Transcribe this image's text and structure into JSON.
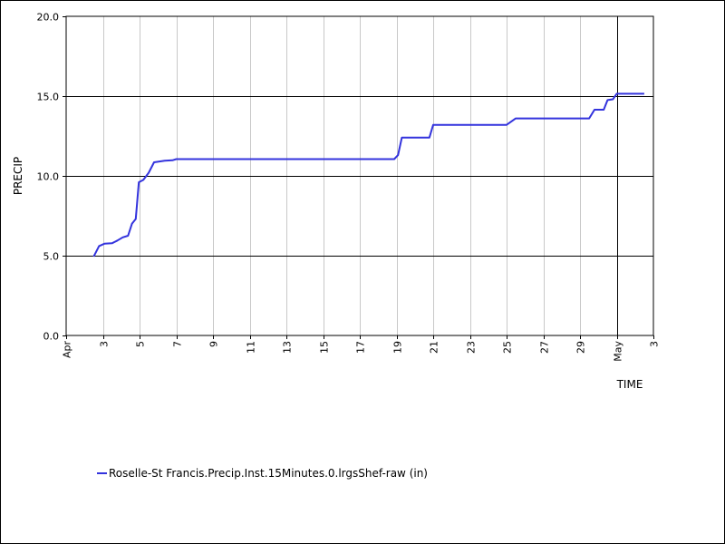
{
  "chart_data": {
    "type": "line",
    "xlabel": "TIME",
    "ylabel": "PRECIP",
    "ylim": [
      0.0,
      20.0
    ],
    "xlim": [
      "2024-04-01",
      "2024-05-03"
    ],
    "y_ticks": [
      0.0,
      5.0,
      10.0,
      15.0,
      20.0
    ],
    "y_tick_labels": [
      "0.0",
      "5.0",
      "10.0",
      "15.0",
      "20.0"
    ],
    "x_ticks": [
      {
        "date": "2024-04-01",
        "label": "Apr"
      },
      {
        "date": "2024-04-03",
        "label": "3"
      },
      {
        "date": "2024-04-05",
        "label": "5"
      },
      {
        "date": "2024-04-07",
        "label": "7"
      },
      {
        "date": "2024-04-09",
        "label": "9"
      },
      {
        "date": "2024-04-11",
        "label": "11"
      },
      {
        "date": "2024-04-13",
        "label": "13"
      },
      {
        "date": "2024-04-15",
        "label": "15"
      },
      {
        "date": "2024-04-17",
        "label": "17"
      },
      {
        "date": "2024-04-19",
        "label": "19"
      },
      {
        "date": "2024-04-21",
        "label": "21"
      },
      {
        "date": "2024-04-23",
        "label": "23"
      },
      {
        "date": "2024-04-25",
        "label": "25"
      },
      {
        "date": "2024-04-27",
        "label": "27"
      },
      {
        "date": "2024-04-29",
        "label": "29"
      },
      {
        "date": "2024-05-01",
        "label": "May"
      },
      {
        "date": "2024-05-03",
        "label": "3"
      }
    ],
    "month_boundary": "2024-05-01",
    "horizontal_grid": [
      5.0,
      10.0,
      15.0
    ],
    "legend_position": "bottom-left",
    "series": [
      {
        "name": "Roselle-St Francis.Precip.Inst.15Minutes.0.lrgsShef-raw (in)",
        "color": "#3333dd",
        "points": [
          [
            "2024-04-02 12:00",
            4.95
          ],
          [
            "2024-04-02 19:00",
            5.6
          ],
          [
            "2024-04-03 02:00",
            5.75
          ],
          [
            "2024-04-03 12:00",
            5.78
          ],
          [
            "2024-04-03 19:00",
            5.95
          ],
          [
            "2024-04-04 02:00",
            6.15
          ],
          [
            "2024-04-04 09:00",
            6.25
          ],
          [
            "2024-04-04 14:00",
            7.0
          ],
          [
            "2024-04-04 19:00",
            7.3
          ],
          [
            "2024-04-04 23:00",
            9.6
          ],
          [
            "2024-04-05 05:00",
            9.75
          ],
          [
            "2024-04-05 12:00",
            10.2
          ],
          [
            "2024-04-05 19:00",
            10.85
          ],
          [
            "2024-04-06 09:00",
            10.95
          ],
          [
            "2024-04-06 19:00",
            10.98
          ],
          [
            "2024-04-07 00:00",
            11.05
          ],
          [
            "2024-04-18 21:00",
            11.05
          ],
          [
            "2024-04-19 02:00",
            11.3
          ],
          [
            "2024-04-19 07:00",
            12.4
          ],
          [
            "2024-04-20 19:00",
            12.4
          ],
          [
            "2024-04-21 00:00",
            13.2
          ],
          [
            "2024-04-25 00:00",
            13.2
          ],
          [
            "2024-04-25 12:00",
            13.6
          ],
          [
            "2024-04-29 12:00",
            13.6
          ],
          [
            "2024-04-29 19:00",
            14.15
          ],
          [
            "2024-04-30 07:00",
            14.15
          ],
          [
            "2024-04-30 12:00",
            14.75
          ],
          [
            "2024-04-30 19:00",
            14.8
          ],
          [
            "2024-05-01 00:00",
            15.15
          ],
          [
            "2024-05-02 12:00",
            15.15
          ]
        ]
      }
    ]
  }
}
